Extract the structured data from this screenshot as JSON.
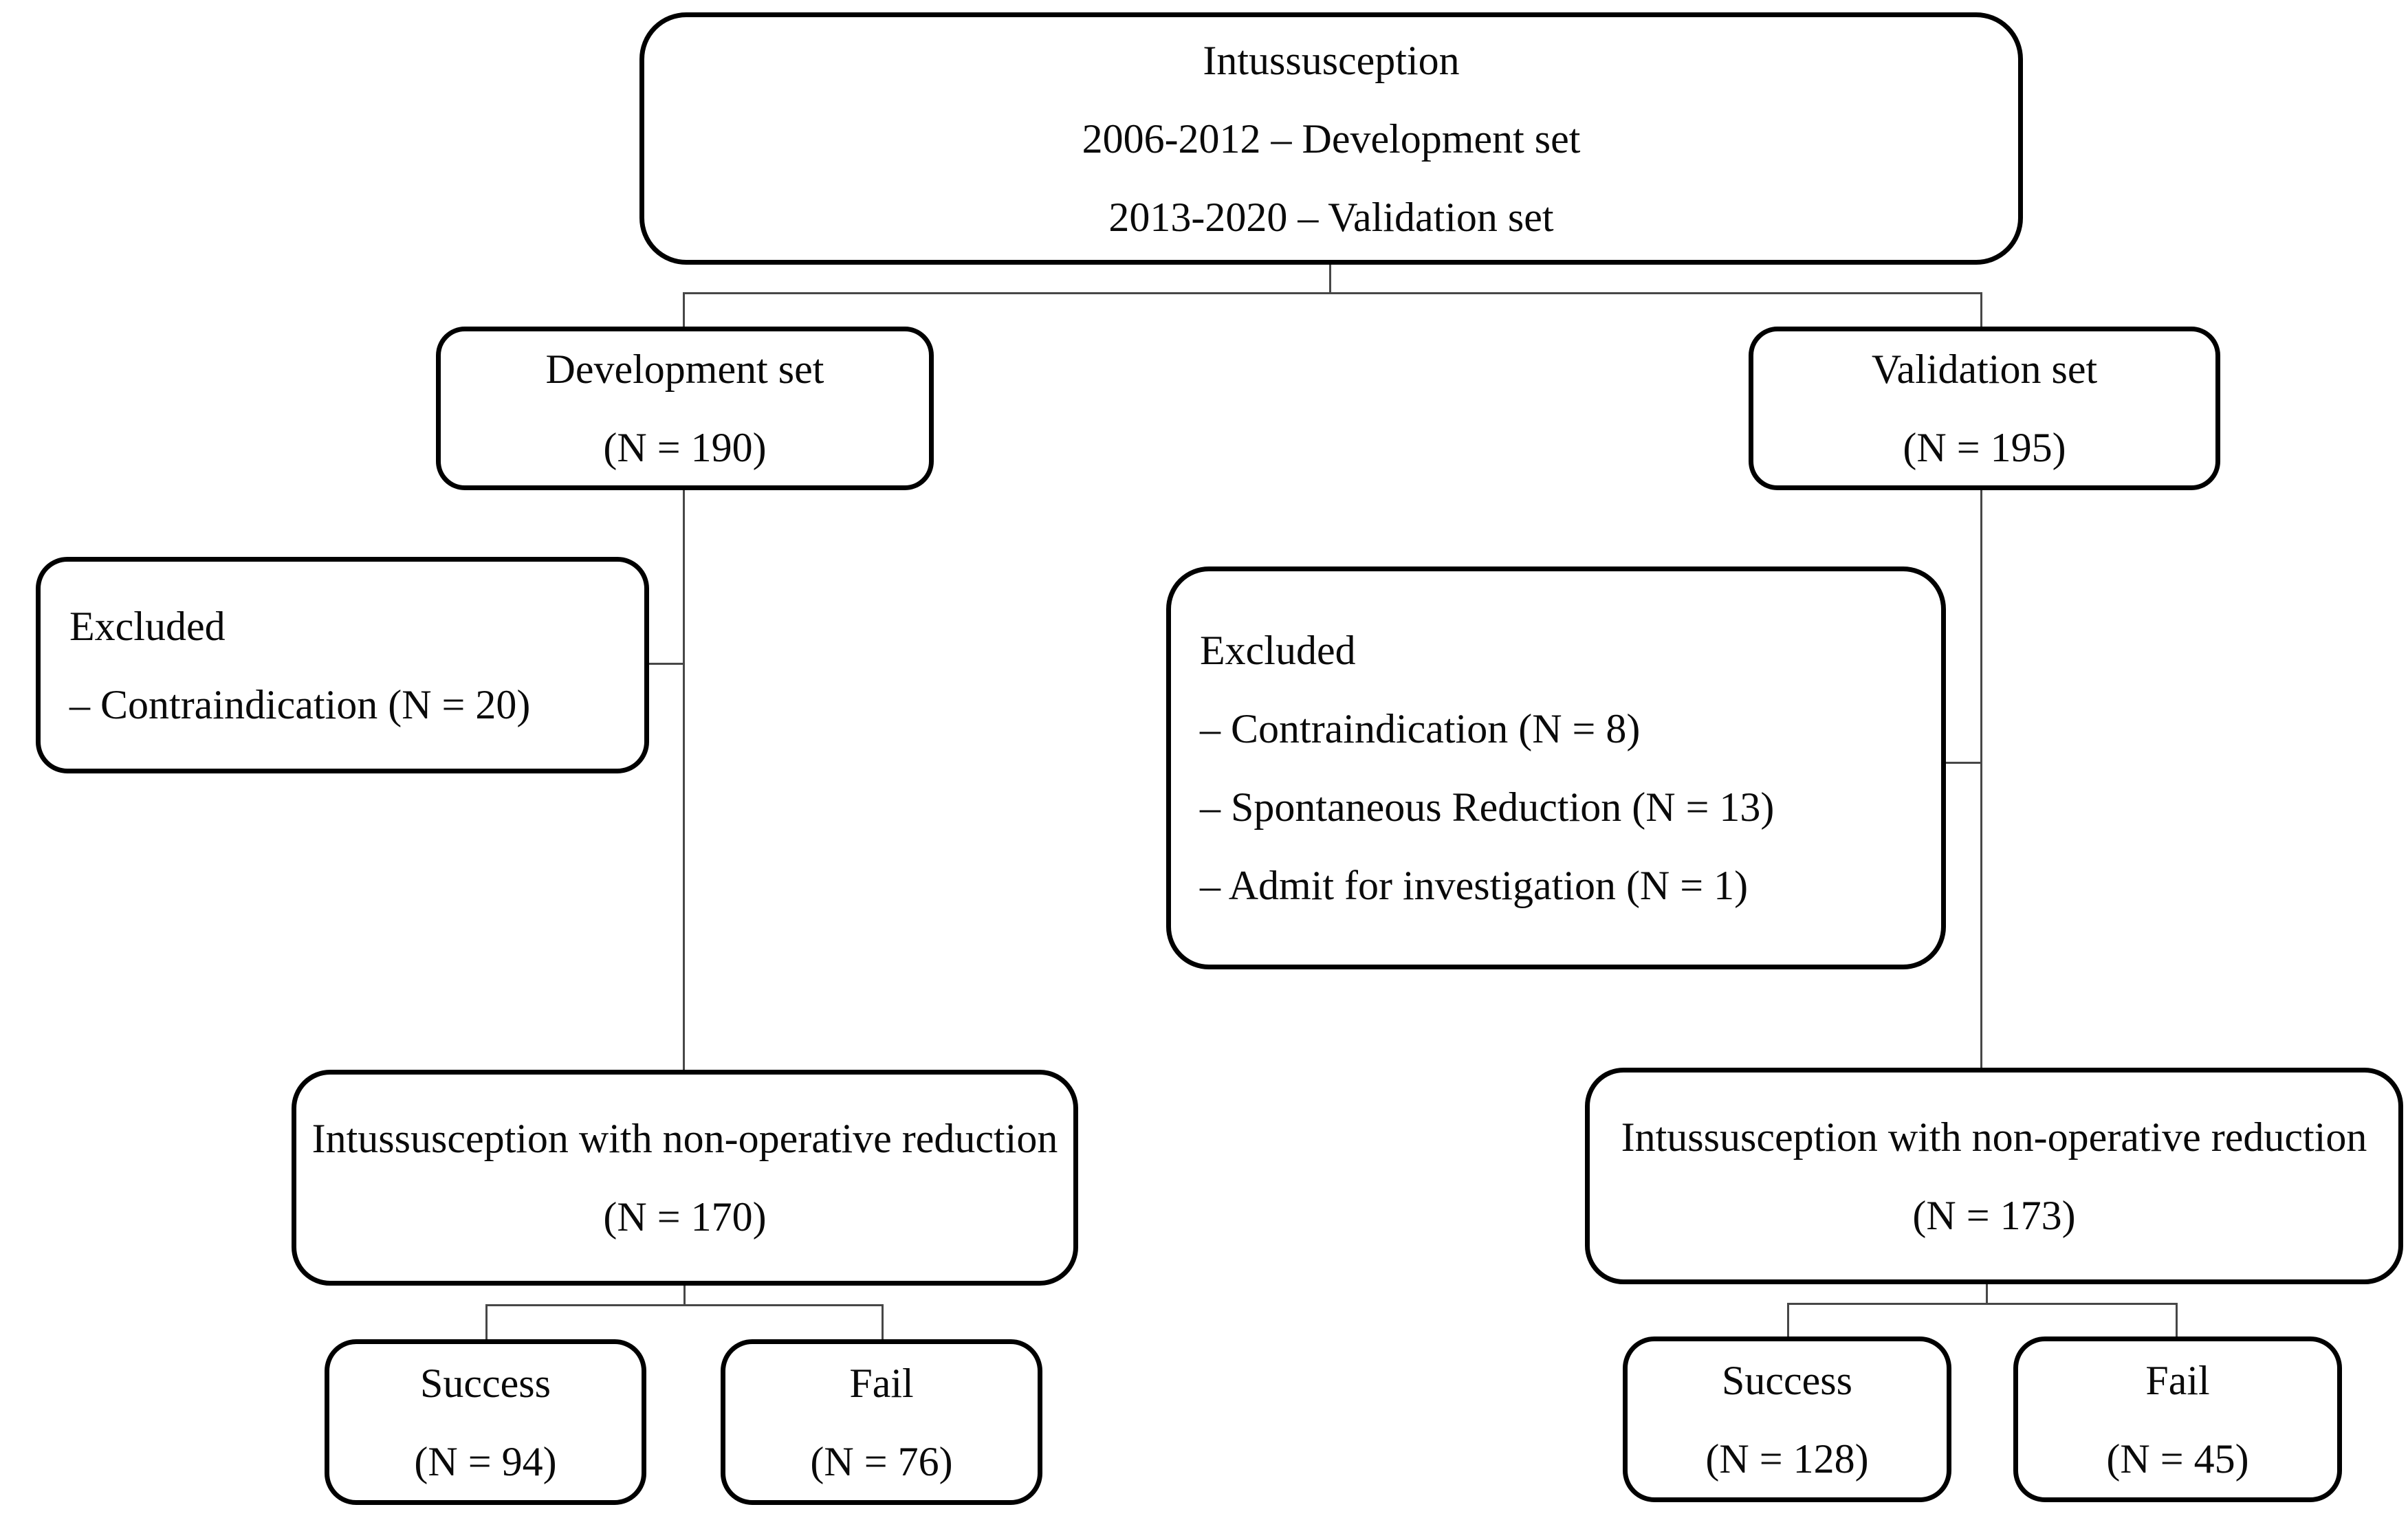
{
  "diagram": {
    "root": {
      "lines": [
        "Intussusception",
        "2006-2012 – Development set",
        "2013-2020 – Validation set"
      ]
    },
    "development": {
      "set": {
        "lines": [
          "Development set",
          "(N = 190)"
        ]
      },
      "excluded": {
        "lines": [
          "Excluded",
          "– Contraindication (N = 20)"
        ]
      },
      "reduction": {
        "lines": [
          "Intussusception with non-operative reduction",
          "(N = 170)"
        ]
      },
      "success": {
        "lines": [
          "Success",
          "(N = 94)"
        ]
      },
      "fail": {
        "lines": [
          "Fail",
          "(N = 76)"
        ]
      }
    },
    "validation": {
      "set": {
        "lines": [
          "Validation set",
          "(N = 195)"
        ]
      },
      "excluded": {
        "lines": [
          "Excluded",
          "– Contraindication (N = 8)",
          "– Spontaneous Reduction (N = 13)",
          "– Admit for investigation (N = 1)"
        ]
      },
      "reduction": {
        "lines": [
          "Intussusception with non-operative reduction",
          "(N = 173)"
        ]
      },
      "success": {
        "lines": [
          "Success",
          "(N = 128)"
        ]
      },
      "fail": {
        "lines": [
          "Fail",
          "(N = 45)"
        ]
      }
    },
    "colors": {
      "box_border": "#000000",
      "connector": "#474747",
      "text": "#0a0a0a",
      "background": "#ffffff"
    }
  }
}
